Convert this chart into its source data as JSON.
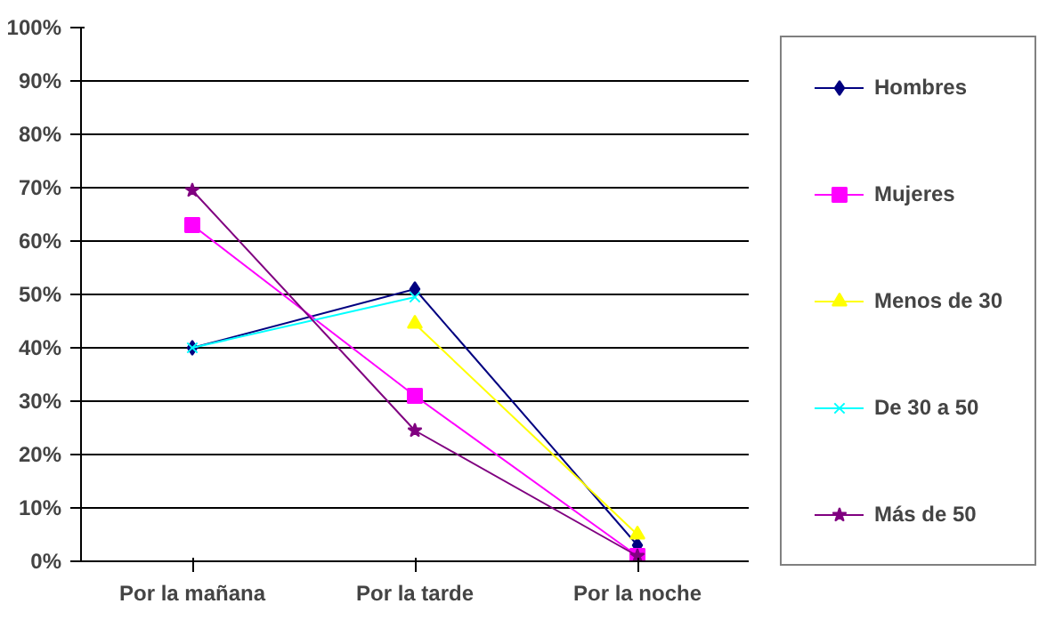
{
  "chart_data": {
    "type": "line",
    "categories": [
      "Por la mañana",
      "Por la tarde",
      "Por la noche"
    ],
    "ylim": [
      0,
      100
    ],
    "yticks": [
      {
        "value": 0,
        "label": "0%"
      },
      {
        "value": 10,
        "label": "10%"
      },
      {
        "value": 20,
        "label": "20%"
      },
      {
        "value": 30,
        "label": "30%"
      },
      {
        "value": 40,
        "label": "40%"
      },
      {
        "value": 50,
        "label": "50%"
      },
      {
        "value": 60,
        "label": "60%"
      },
      {
        "value": 70,
        "label": "70%"
      },
      {
        "value": 80,
        "label": "80%"
      },
      {
        "value": 90,
        "label": "90%"
      },
      {
        "value": 100,
        "label": "100%"
      }
    ],
    "grid": "y",
    "legend": "right",
    "series": [
      {
        "name": "Hombres",
        "color": "#000080",
        "marker": "diamond",
        "values": [
          40,
          51,
          3
        ]
      },
      {
        "name": "Mujeres",
        "color": "#ff00ff",
        "marker": "square",
        "values": [
          63,
          31,
          1
        ]
      },
      {
        "name": "Menos de 30",
        "color": "#ffff00",
        "marker": "triangle",
        "values": [
          null,
          44.5,
          5
        ]
      },
      {
        "name": "De 30 a 50",
        "color": "#00ffff",
        "marker": "cross",
        "values": [
          40,
          49.5,
          null
        ]
      },
      {
        "name": "Más de 50",
        "color": "#800080",
        "marker": "star",
        "values": [
          69.5,
          24.5,
          1
        ]
      }
    ]
  }
}
